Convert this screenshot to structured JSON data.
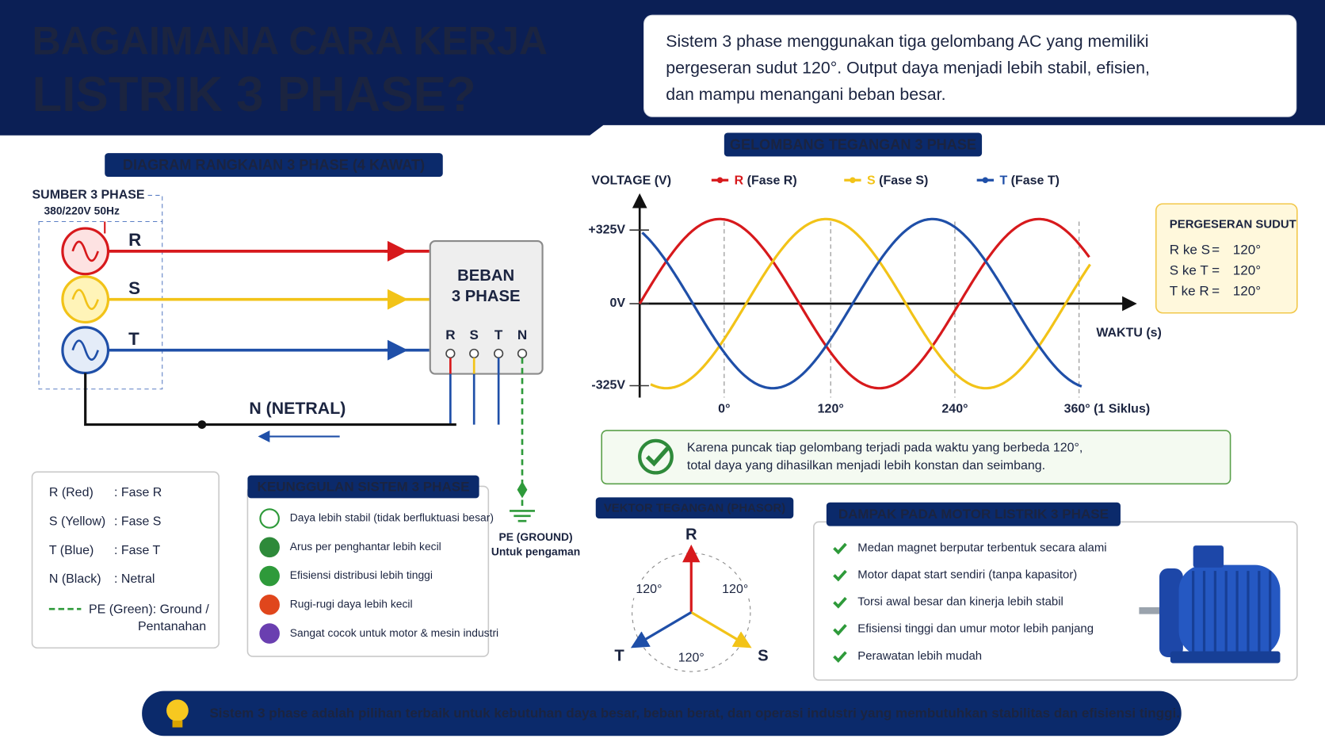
{
  "header": {
    "title": [
      "BAGAIMANA CARA KERJA",
      "LISTRIK 3 PHASE?"
    ],
    "intro": [
      "Sistem 3 phase menggunakan tiga gelombang AC yang memiliki",
      "pergeseran sudut 120°. Output daya menjadi lebih stabil, efisien,",
      "dan mampu menangani beban besar."
    ]
  },
  "circuit": {
    "heading": "DIAGRAM RANGKAIAN 3 PHASE (4 KAWAT)",
    "source_title": "SUMBER 3 PHASE",
    "source_spec": "380/220V 50Hz",
    "phases": [
      "R",
      "S",
      "T"
    ],
    "load": [
      "BEBAN",
      "3 PHASE"
    ],
    "terminals": [
      "R",
      "S",
      "T",
      "N"
    ],
    "neutral": "N (NETRAL)",
    "ground": [
      "PE (GROUND)",
      "Untuk pengaman"
    ]
  },
  "legend": {
    "items": [
      {
        "key": "R (Red)",
        "desc": ": Fase R"
      },
      {
        "key": "S (Yellow)",
        "desc": ": Fase S"
      },
      {
        "key": "T (Blue)",
        "desc": ": Fase T"
      },
      {
        "key": "N (Black)",
        "desc": ": Netral"
      }
    ],
    "pe": [
      "PE (Green): Ground /",
      "Pentanahan"
    ]
  },
  "advantages": {
    "heading": "KEUNGGULAN SISTEM 3 PHASE",
    "items": [
      "Daya lebih stabil (tidak berfluktuasi besar)",
      "Arus per penghantar lebih kecil",
      "Efisiensi distribusi lebih tinggi",
      "Rugi-rugi daya lebih kecil",
      "Sangat cocok untuk motor & mesin industri"
    ]
  },
  "waves": {
    "heading": "GELOMBANG TEGANGAN 3 PHASE",
    "y_label": "VOLTAGE (V)",
    "series": [
      {
        "letter": "R",
        "name": "(Fase R)"
      },
      {
        "letter": "S",
        "name": "(Fase S)"
      },
      {
        "letter": "T",
        "name": "(Fase T)"
      }
    ],
    "y_ticks": [
      "+325V",
      "0V",
      "-325V"
    ],
    "x_ticks": [
      "0°",
      "120°",
      "240°",
      "360° (1 Siklus)"
    ],
    "x_label": "WAKTU (s)"
  },
  "shift": {
    "title": "PERGESERAN SUDUT",
    "rows": [
      [
        "R ke S",
        "=",
        "120°"
      ],
      [
        "S ke T",
        "=",
        "120°"
      ],
      [
        "T ke R",
        "=",
        "120°"
      ]
    ]
  },
  "note": [
    "Karena puncak tiap gelombang terjadi pada waktu yang berbeda 120°,",
    "total daya yang dihasilkan menjadi lebih konstan dan seimbang."
  ],
  "phasor": {
    "heading": "VEKTOR TEGANGAN (PHASOR)",
    "labels": [
      "R",
      "S",
      "T"
    ],
    "angles": [
      "120°",
      "120°",
      "120°"
    ]
  },
  "motor": {
    "heading": "DAMPAK PADA MOTOR LISTRIK 3 PHASE",
    "items": [
      "Medan magnet berputar terbentuk secara alami",
      "Motor dapat start sendiri (tanpa kapasitor)",
      "Torsi awal besar dan kinerja lebih stabil",
      "Efisiensi tinggi dan umur motor lebih panjang",
      "Perawatan lebih mudah"
    ]
  },
  "footer": "Sistem 3 phase adalah pilihan terbaik untuk kebutuhan daya besar, beban berat, dan operasi industri yang membutuhkan stabilitas dan efisiensi tinggi."
}
